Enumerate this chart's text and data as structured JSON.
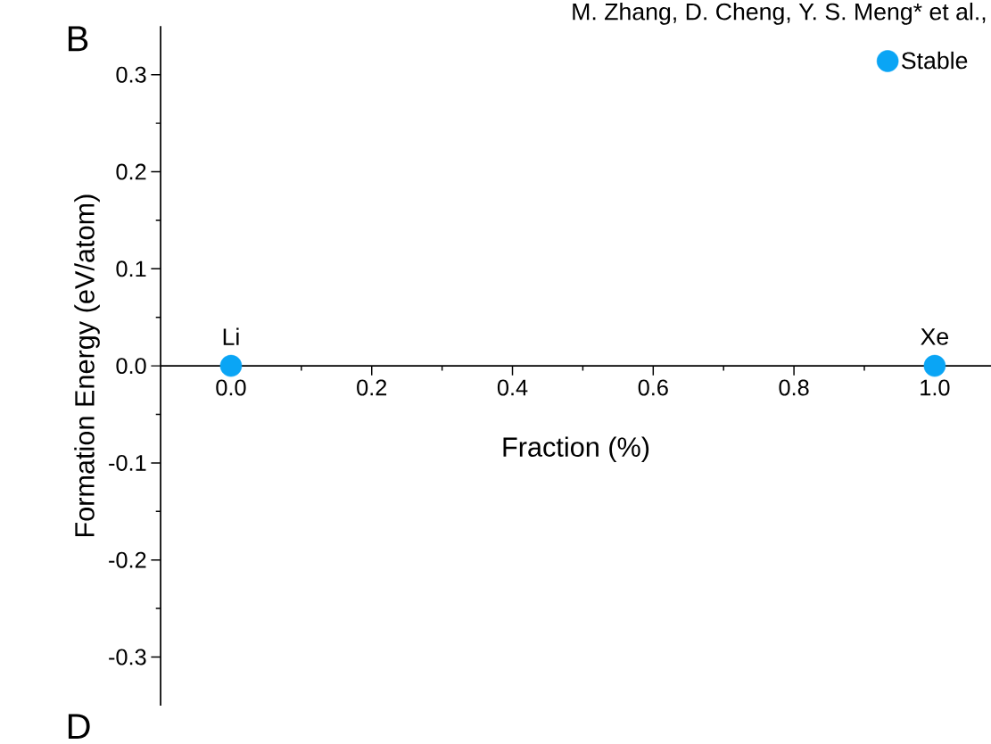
{
  "chart_data": {
    "type": "scatter",
    "xlabel": "Fraction (%)",
    "ylabel": "Formation Energy (eV/atom)",
    "x": [
      0.0,
      1.0
    ],
    "series": [
      {
        "name": "Stable",
        "color": "#0aa5f5",
        "values": [
          0.0,
          0.0
        ]
      }
    ],
    "xlim": [
      -0.1,
      1.08
    ],
    "ylim": [
      -0.35,
      0.35
    ],
    "xticks": [
      {
        "value": 0.0,
        "label": "0.0"
      },
      {
        "value": 0.2,
        "label": "0.2"
      },
      {
        "value": 0.4,
        "label": "0.4"
      },
      {
        "value": 0.6,
        "label": "0.6"
      },
      {
        "value": 0.8,
        "label": "0.8"
      },
      {
        "value": 1.0,
        "label": "1.0"
      }
    ],
    "yticks": [
      {
        "value": -0.3,
        "label": "-0.3"
      },
      {
        "value": -0.2,
        "label": "-0.2"
      },
      {
        "value": -0.1,
        "label": "-0.1"
      },
      {
        "value": 0.0,
        "label": "0.0"
      },
      {
        "value": 0.1,
        "label": "0.1"
      },
      {
        "value": 0.2,
        "label": "0.2"
      },
      {
        "value": 0.3,
        "label": "0.3"
      }
    ],
    "grid": false,
    "legend": "top right",
    "annotations": [
      {
        "text": "Li",
        "x": 0.0,
        "y": 0.0
      },
      {
        "text": "Xe",
        "x": 1.0,
        "y": 0.0
      },
      "M. Zhang, D. Cheng, Y. S. Meng* et al.,",
      "B",
      "D"
    ]
  }
}
